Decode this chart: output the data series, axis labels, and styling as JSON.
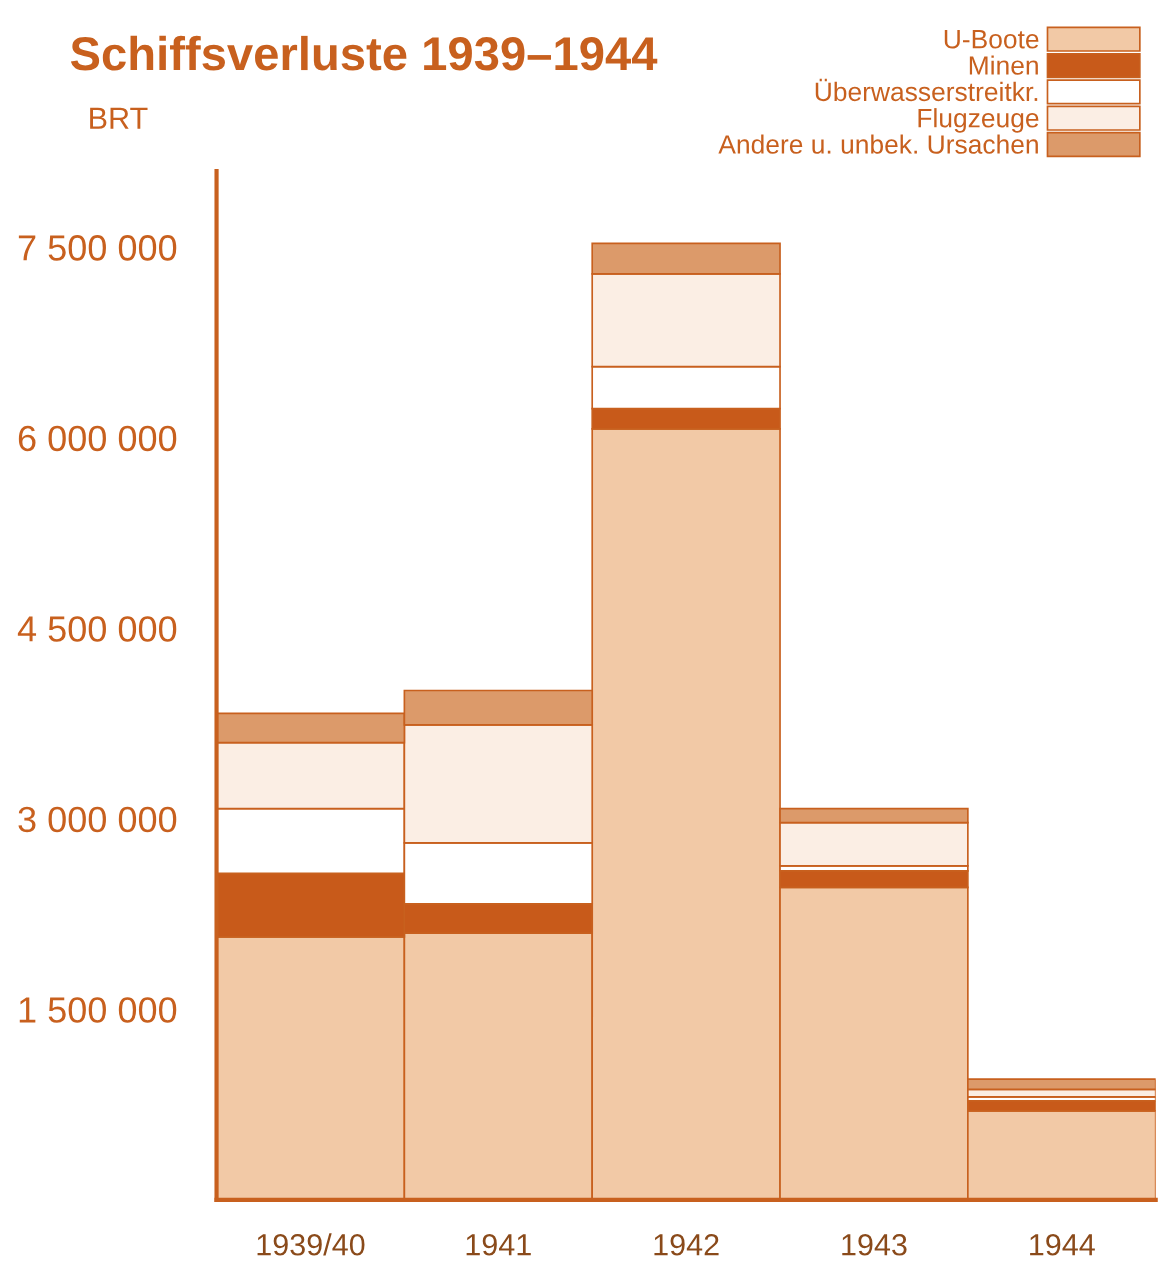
{
  "chart_data": {
    "type": "bar",
    "stacked": true,
    "title": "Schiffsverluste 1939–1944",
    "ylabel": "BRT",
    "categories": [
      "1939/40",
      "1941",
      "1942",
      "1943",
      "1944"
    ],
    "series": [
      {
        "name": "U-Boote",
        "color": "#f2c9a6",
        "values": [
          2070000,
          2100000,
          6070000,
          2460000,
          700000
        ]
      },
      {
        "name": "Minen",
        "color": "#c85a1a",
        "values": [
          500000,
          230000,
          160000,
          130000,
          80000
        ]
      },
      {
        "name": "Überwasserstreitkr.",
        "color": "#ffffff",
        "values": [
          510000,
          480000,
          330000,
          40000,
          30000
        ]
      },
      {
        "name": "Flugzeuge",
        "color": "#fbeee4",
        "values": [
          520000,
          930000,
          730000,
          340000,
          60000
        ]
      },
      {
        "name": "Andere u. unbek. Ursachen",
        "color": "#dc9a6a",
        "values": [
          230000,
          270000,
          240000,
          110000,
          80000
        ]
      }
    ],
    "ylim": [
      0,
      8100000
    ],
    "yticks": [
      {
        "value": 1500000,
        "label": "1 500 000"
      },
      {
        "value": 3000000,
        "label": "3 000 000"
      },
      {
        "value": 4500000,
        "label": "4 500 000"
      },
      {
        "value": 6000000,
        "label": "6 000 000"
      },
      {
        "value": 7500000,
        "label": "7 500 000"
      }
    ],
    "grid": false,
    "legend": "top right"
  }
}
